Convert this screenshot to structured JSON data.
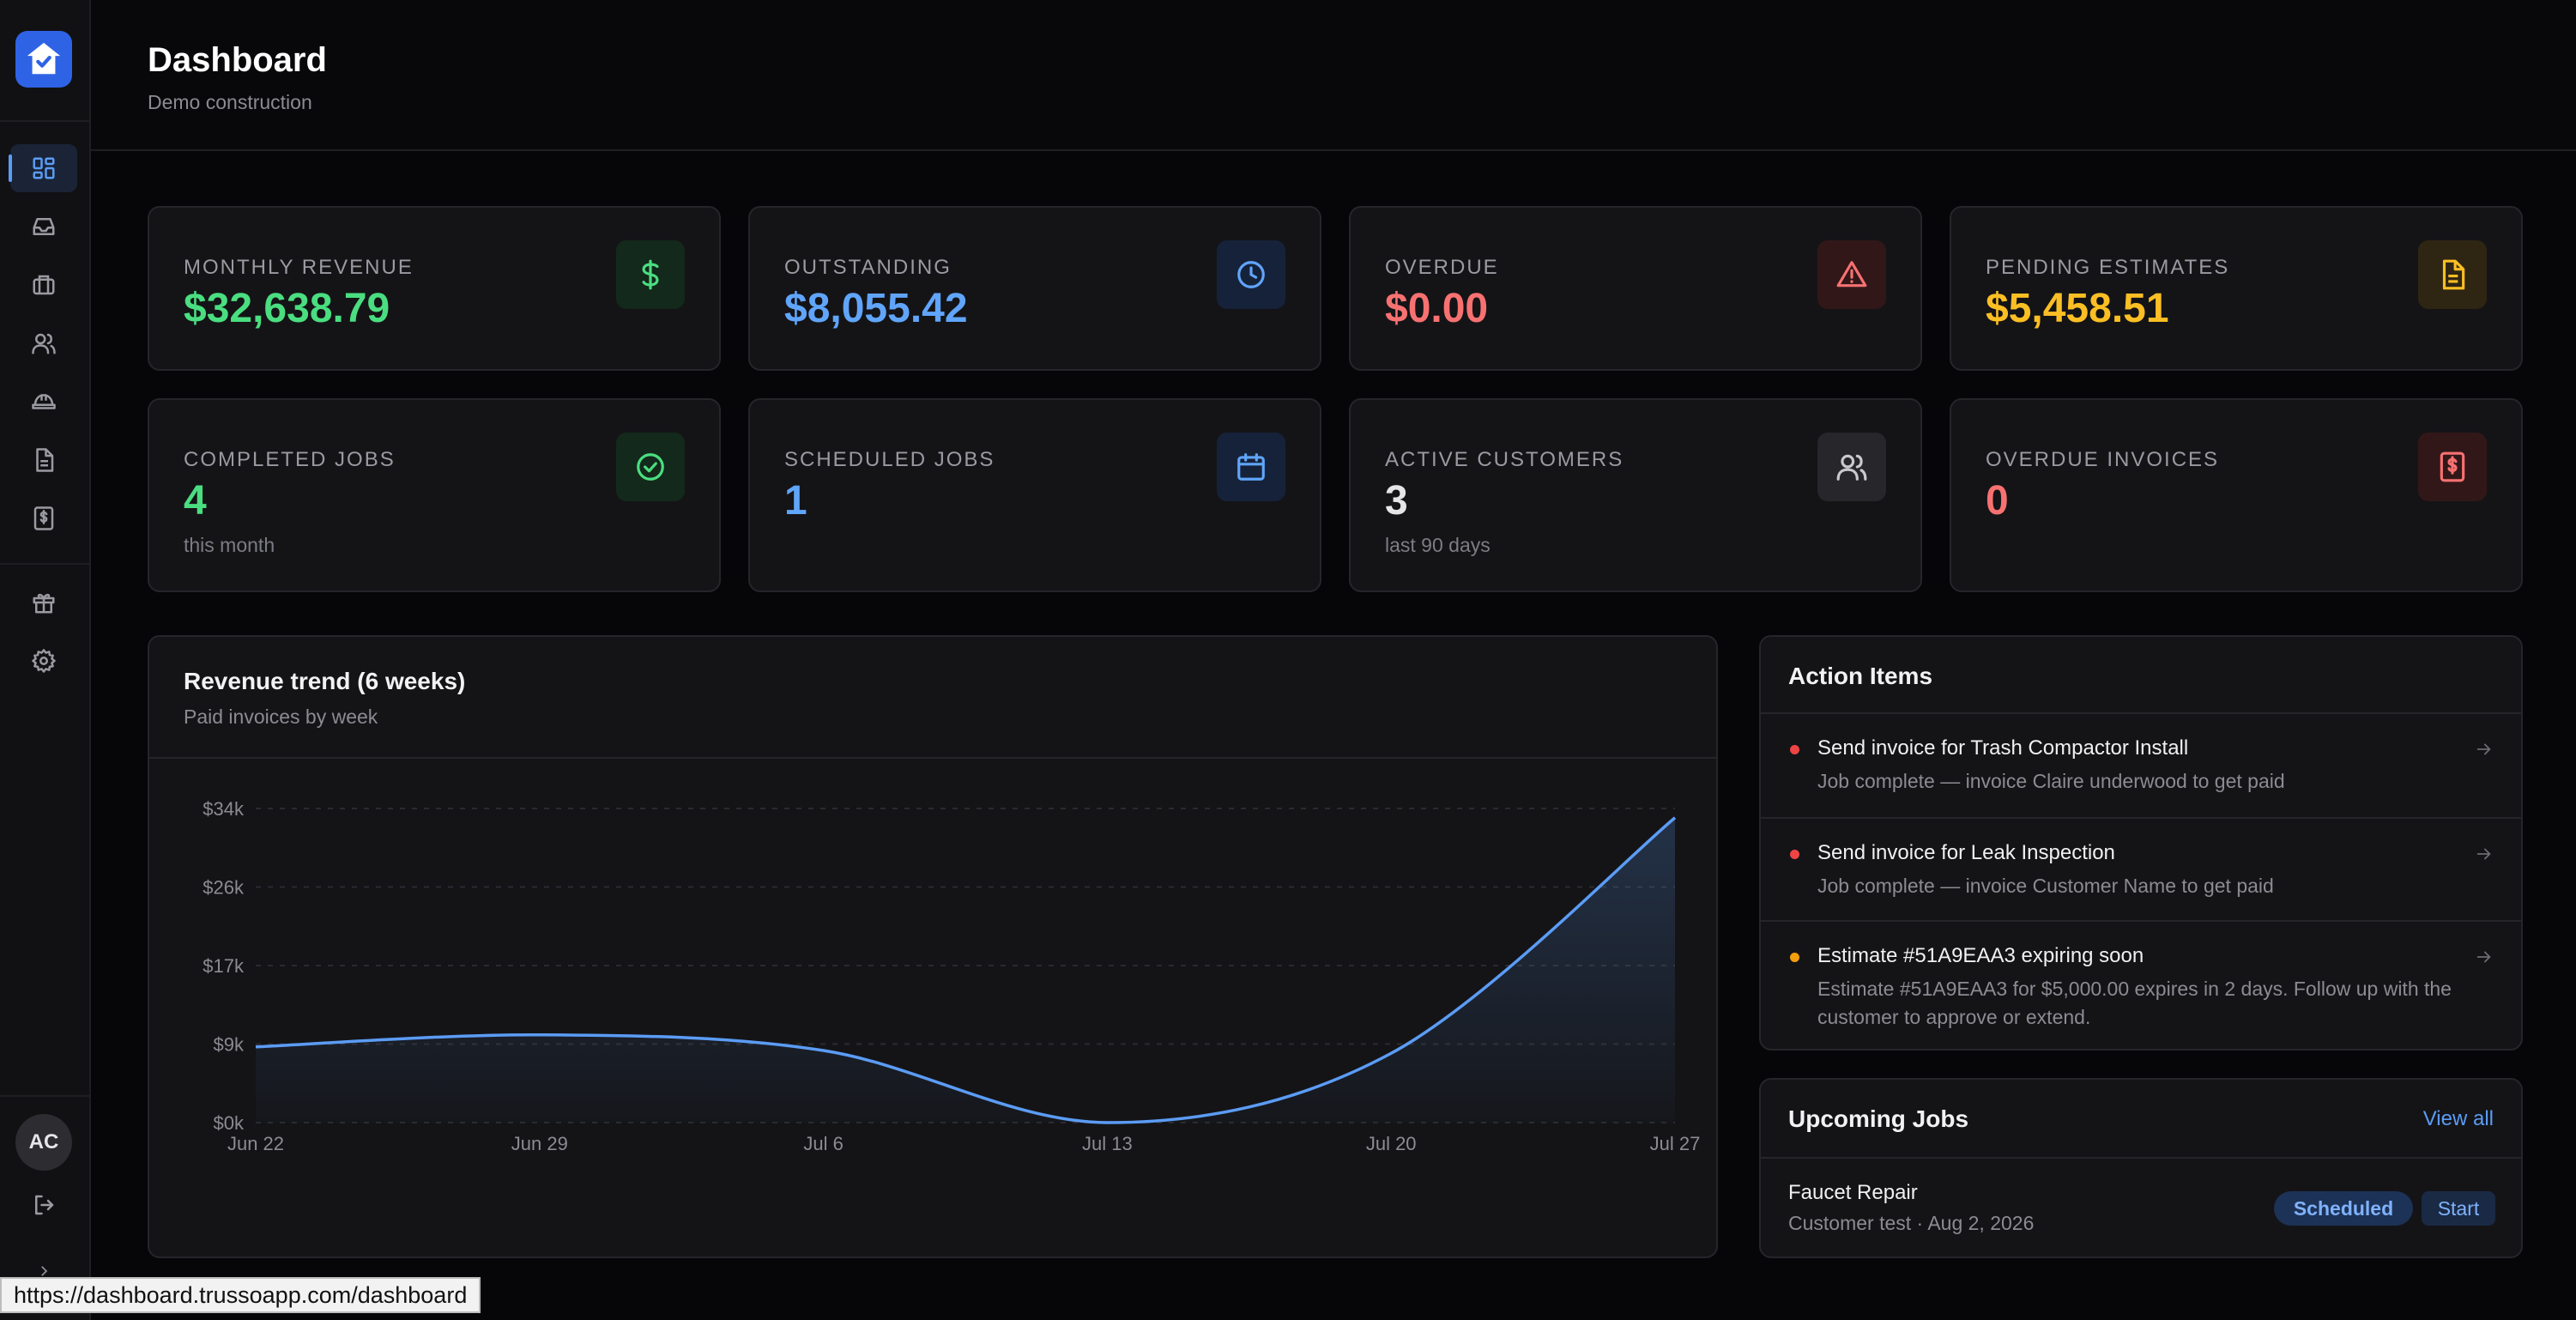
{
  "header": {
    "title": "Dashboard",
    "subtitle": "Demo construction"
  },
  "user": {
    "initials": "AC"
  },
  "sidebar": {
    "items": [
      {
        "icon": "grid-icon",
        "active": true
      },
      {
        "icon": "inbox-icon"
      },
      {
        "icon": "briefcase-icon"
      },
      {
        "icon": "users-icon"
      },
      {
        "icon": "hard-hat-icon"
      },
      {
        "icon": "document-icon"
      },
      {
        "icon": "invoice-icon"
      },
      {
        "icon": "gift-icon"
      },
      {
        "icon": "gear-icon"
      }
    ]
  },
  "stats": [
    {
      "label": "MONTHLY REVENUE",
      "value": "$32,638.79",
      "color": "#4ade80",
      "icon": "dollar-icon"
    },
    {
      "label": "OUTSTANDING",
      "value": "$8,055.42",
      "color": "#60a5fa",
      "icon": "clock-icon"
    },
    {
      "label": "OVERDUE",
      "value": "$0.00",
      "color": "#f87171",
      "icon": "warning-icon"
    },
    {
      "label": "PENDING ESTIMATES",
      "value": "$5,458.51",
      "color": "#fbbf24",
      "icon": "file-text-icon"
    },
    {
      "label": "COMPLETED JOBS",
      "value": "4",
      "sub": "this month",
      "color": "#4ade80",
      "icon": "check-circle-icon"
    },
    {
      "label": "SCHEDULED JOBS",
      "value": "1",
      "color": "#60a5fa",
      "icon": "calendar-icon"
    },
    {
      "label": "ACTIVE CUSTOMERS",
      "value": "3",
      "sub": "last 90 days",
      "color": "#e5e5e7",
      "icon": "users-icon"
    },
    {
      "label": "OVERDUE INVOICES",
      "value": "0",
      "color": "#f87171",
      "icon": "receipt-icon"
    }
  ],
  "revenue": {
    "title": "Revenue trend (6 weeks)",
    "subtitle": "Paid invoices by week"
  },
  "chart_data": {
    "type": "area",
    "title": "Revenue trend (6 weeks)",
    "subtitle": "Paid invoices by week",
    "categories": [
      "Jun 22",
      "Jun 29",
      "Jul 6",
      "Jul 13",
      "Jul 20",
      "Jul 27"
    ],
    "values": [
      8200,
      9500,
      7800,
      0,
      7500,
      33000
    ],
    "yticks": [
      "$0k",
      "$9k",
      "$17k",
      "$26k",
      "$34k"
    ],
    "ylim": [
      0,
      34000
    ],
    "grid": true,
    "line_color": "#5b9cf5"
  },
  "action_items": {
    "title": "Action Items",
    "items": [
      {
        "title": "Send invoice for Trash Compactor Install",
        "desc": "Job complete — invoice Claire underwood to get paid",
        "color": "#ef4444"
      },
      {
        "title": "Send invoice for Leak Inspection",
        "desc": "Job complete — invoice Customer Name to get paid",
        "color": "#ef4444"
      },
      {
        "title": "Estimate #51A9EAA3 expiring soon",
        "desc": "Estimate #51A9EAA3 for $5,000.00 expires in 2 days. Follow up with the customer to approve or extend.",
        "color": "#f59e0b"
      }
    ]
  },
  "upcoming": {
    "title": "Upcoming Jobs",
    "view_all": "View all",
    "jobs": [
      {
        "title": "Faucet Repair",
        "meta": "Customer test · Aug 2, 2026",
        "status": "Scheduled",
        "action": "Start"
      }
    ]
  },
  "status_bar": {
    "url": "https://dashboard.trussoapp.com/dashboard"
  }
}
